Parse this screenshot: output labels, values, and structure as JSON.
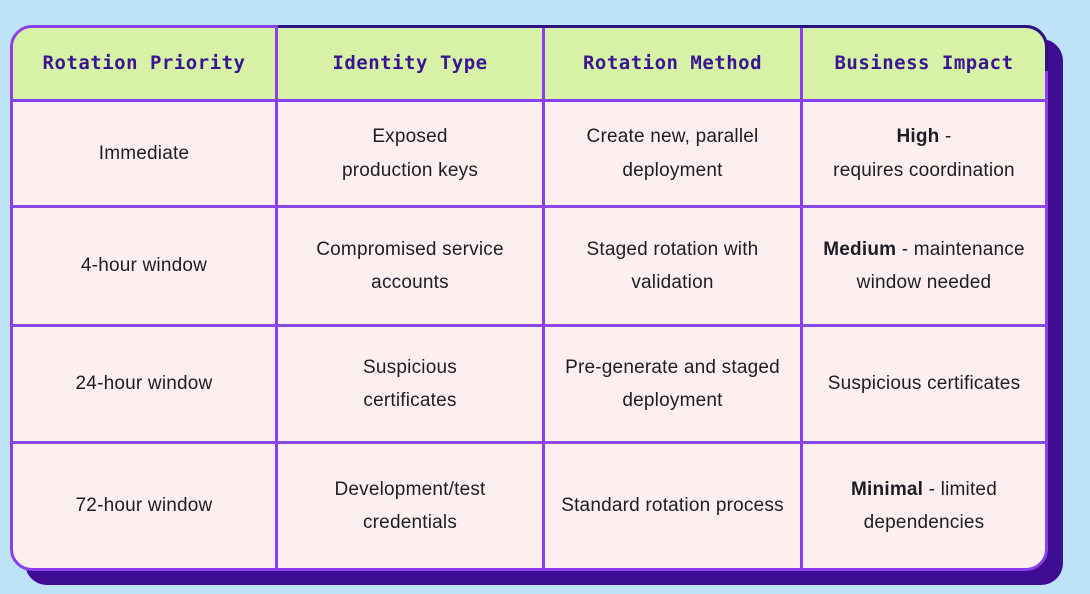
{
  "colors": {
    "page_background": "#bee3f8",
    "card_background": "#fdeff0",
    "card_border": "#8a3eec",
    "card_shadow": "#3e0c92",
    "header_background": "#d7f1a6",
    "header_text": "#3a1591",
    "body_text": "#1d1d26",
    "top_edge_accent": "#2e1182"
  },
  "chart_data": {
    "type": "table",
    "columns": [
      "Rotation Priority",
      "Identity Type",
      "Rotation Method",
      "Business Impact"
    ],
    "rows": [
      {
        "rotation_priority": "Immediate",
        "identity_type": "Exposed\nproduction keys",
        "rotation_method": "Create new, parallel\ndeployment",
        "business_impact_emphasis": "High",
        "business_impact_text": " -\nrequires coordination"
      },
      {
        "rotation_priority": "4-hour window",
        "identity_type": "Compromised service\naccounts",
        "rotation_method": "Staged rotation with\nvalidation",
        "business_impact_emphasis": "Medium",
        "business_impact_text": " - maintenance\nwindow needed"
      },
      {
        "rotation_priority": "24-hour window",
        "identity_type": "Suspicious\ncertificates",
        "rotation_method": "Pre-generate and staged\ndeployment",
        "business_impact_emphasis": "",
        "business_impact_text": "Suspicious certificates"
      },
      {
        "rotation_priority": "72-hour window",
        "identity_type": "Development/test\ncredentials",
        "rotation_method": "Standard rotation process",
        "business_impact_emphasis": "Minimal",
        "business_impact_text": " - limited\ndependencies"
      }
    ]
  }
}
